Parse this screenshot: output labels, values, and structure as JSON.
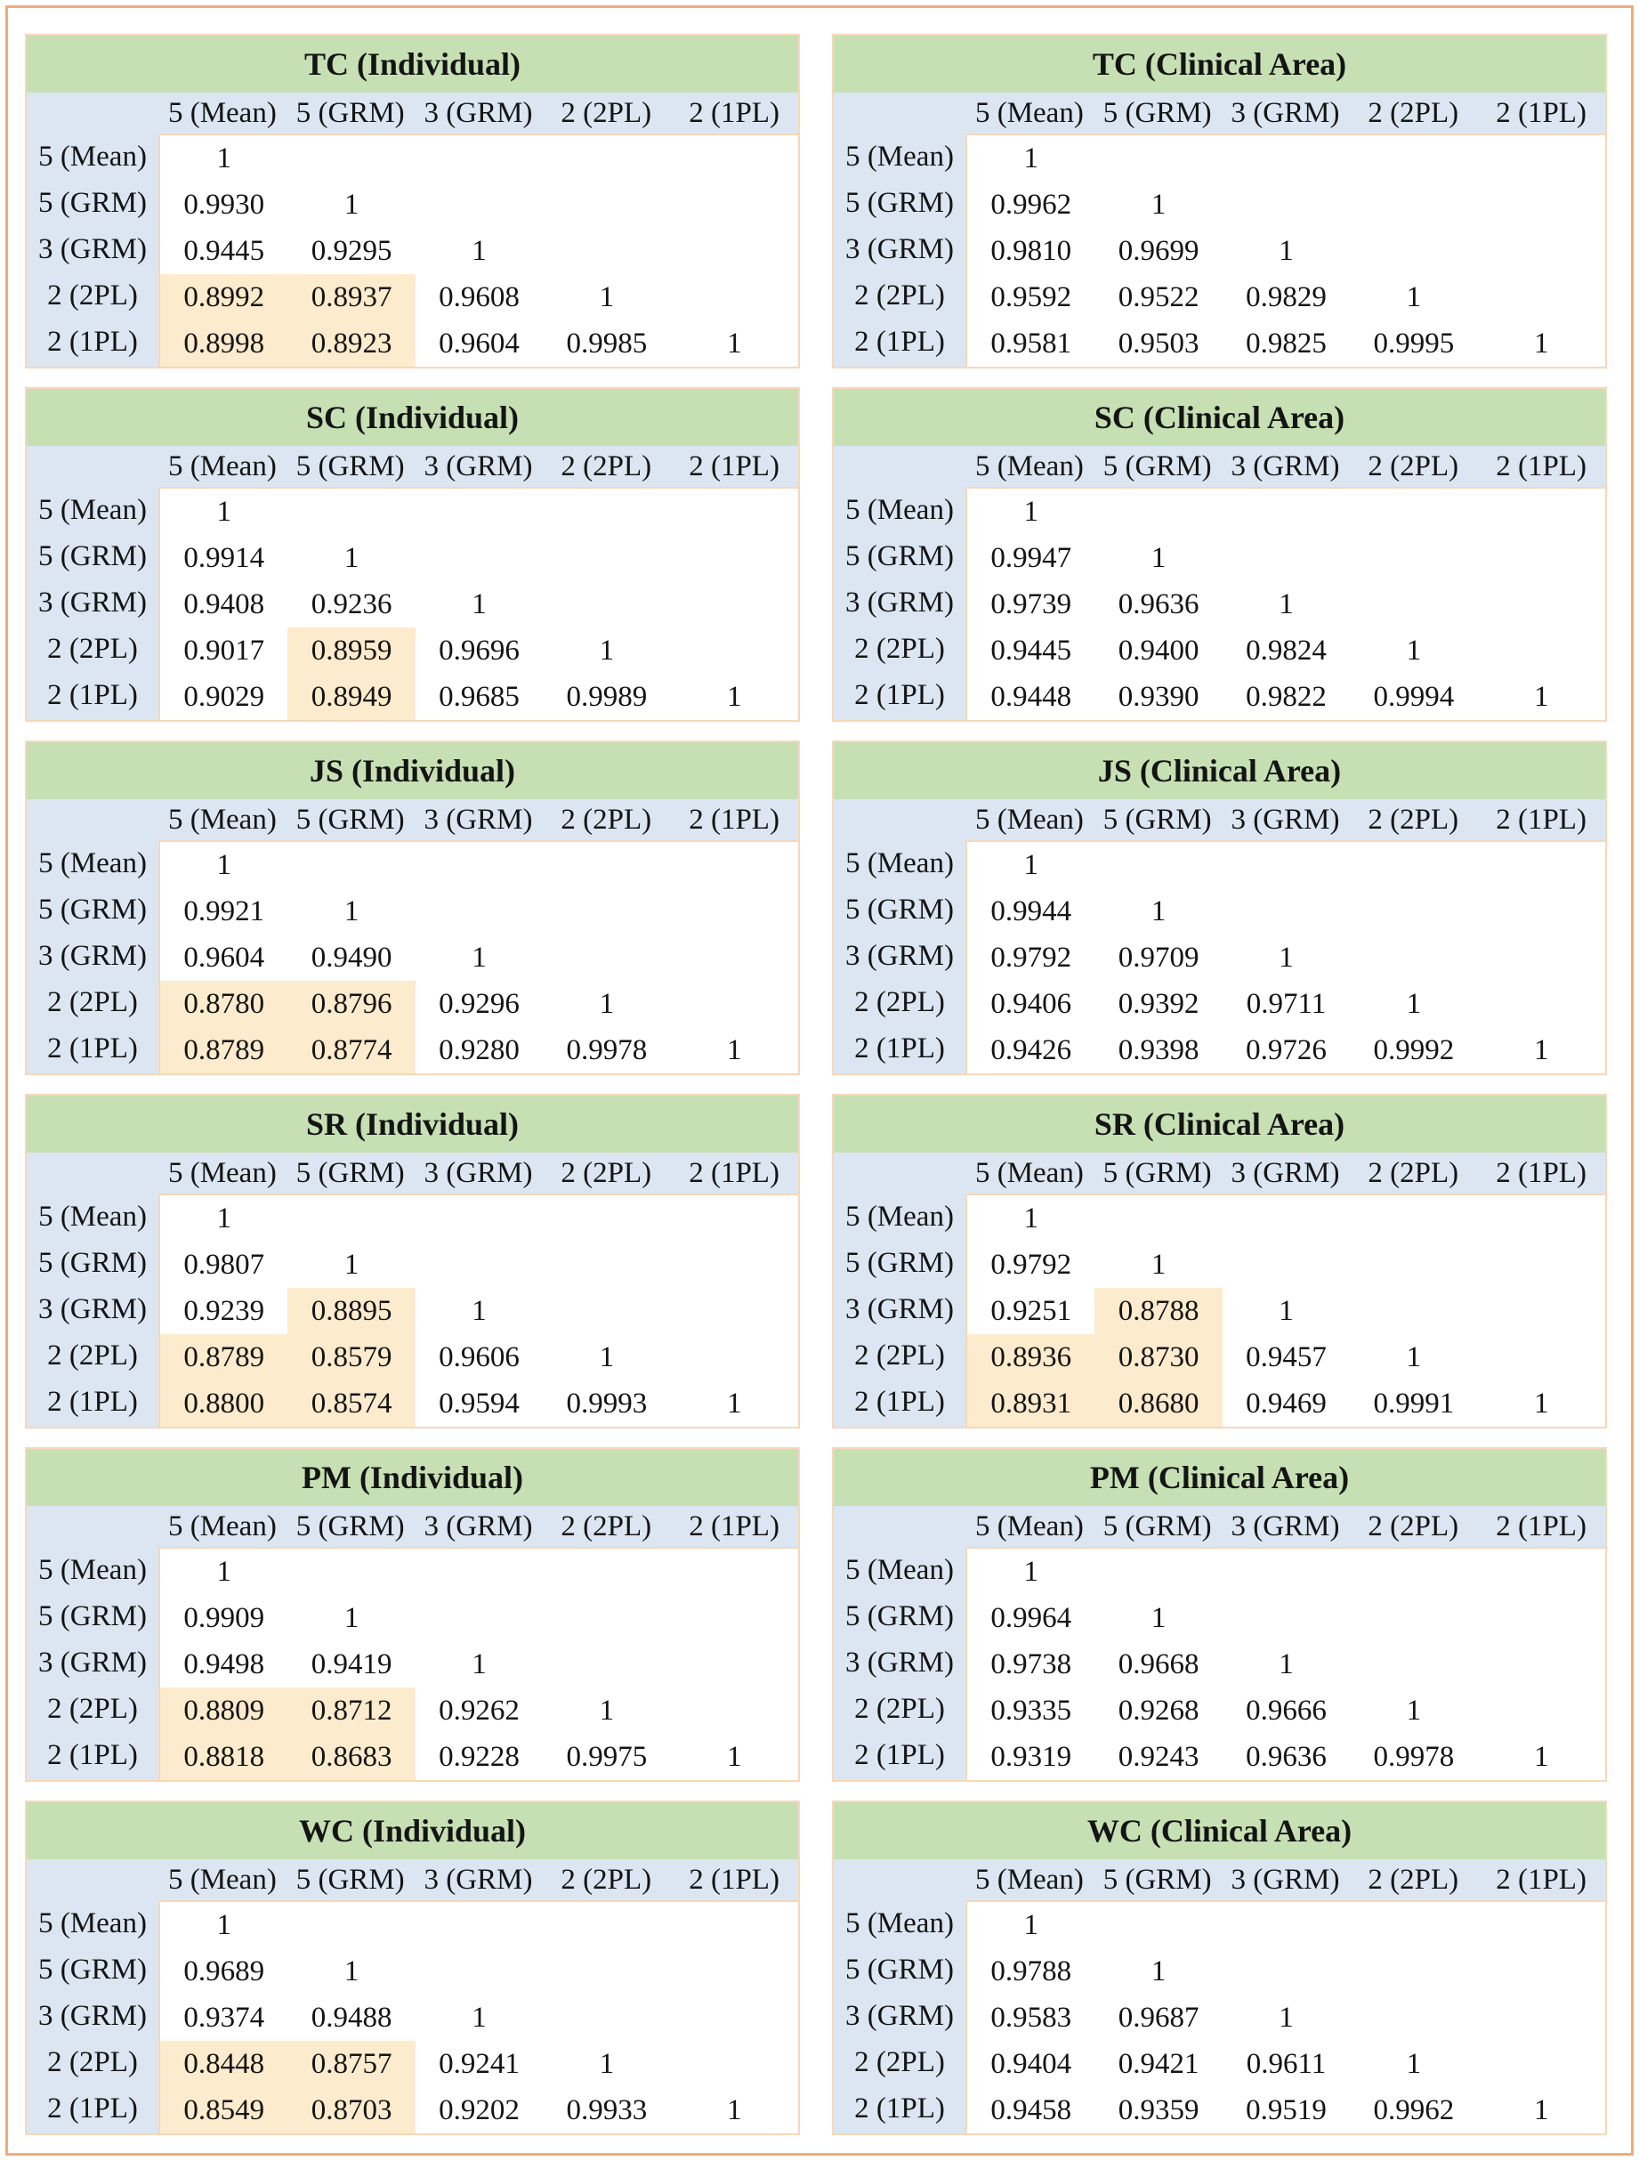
{
  "page": {
    "background": "#ffffff",
    "border_color": "#efab7e",
    "description": "Grid of twelve lower-triangular correlation matrices comparing scoring models (Individual vs Clinical Area) for six scales"
  },
  "colors": {
    "page_border": "#efab7e",
    "table_border": "#f8d7b9",
    "title_bg": "#c6e0b4",
    "header_bg": "#dbe6f2",
    "highlight_bg": "#fcebcd",
    "text": "#141414"
  },
  "highlight": {
    "rule": "value_below",
    "threshold": 0.9
  },
  "columns": [
    "5 (Mean)",
    "5 (GRM)",
    "3 (GRM)",
    "2 (2PL)",
    "2 (1PL)"
  ],
  "rows": [
    "5 (Mean)",
    "5 (GRM)",
    "3 (GRM)",
    "2 (2PL)",
    "2 (1PL)"
  ],
  "tables": [
    {
      "title": "TC (Individual)",
      "values": [
        [
          "1"
        ],
        [
          "0.9930",
          "1"
        ],
        [
          "0.9445",
          "0.9295",
          "1"
        ],
        [
          "0.8992",
          "0.8937",
          "0.9608",
          "1"
        ],
        [
          "0.8998",
          "0.8923",
          "0.9604",
          "0.9985",
          "1"
        ]
      ]
    },
    {
      "title": "TC (Clinical Area)",
      "values": [
        [
          "1"
        ],
        [
          "0.9962",
          "1"
        ],
        [
          "0.9810",
          "0.9699",
          "1"
        ],
        [
          "0.9592",
          "0.9522",
          "0.9829",
          "1"
        ],
        [
          "0.9581",
          "0.9503",
          "0.9825",
          "0.9995",
          "1"
        ]
      ]
    },
    {
      "title": "SC (Individual)",
      "values": [
        [
          "1"
        ],
        [
          "0.9914",
          "1"
        ],
        [
          "0.9408",
          "0.9236",
          "1"
        ],
        [
          "0.9017",
          "0.8959",
          "0.9696",
          "1"
        ],
        [
          "0.9029",
          "0.8949",
          "0.9685",
          "0.9989",
          "1"
        ]
      ]
    },
    {
      "title": "SC (Clinical Area)",
      "values": [
        [
          "1"
        ],
        [
          "0.9947",
          "1"
        ],
        [
          "0.9739",
          "0.9636",
          "1"
        ],
        [
          "0.9445",
          "0.9400",
          "0.9824",
          "1"
        ],
        [
          "0.9448",
          "0.9390",
          "0.9822",
          "0.9994",
          "1"
        ]
      ]
    },
    {
      "title": "JS (Individual)",
      "values": [
        [
          "1"
        ],
        [
          "0.9921",
          "1"
        ],
        [
          "0.9604",
          "0.9490",
          "1"
        ],
        [
          "0.8780",
          "0.8796",
          "0.9296",
          "1"
        ],
        [
          "0.8789",
          "0.8774",
          "0.9280",
          "0.9978",
          "1"
        ]
      ]
    },
    {
      "title": "JS (Clinical Area)",
      "values": [
        [
          "1"
        ],
        [
          "0.9944",
          "1"
        ],
        [
          "0.9792",
          "0.9709",
          "1"
        ],
        [
          "0.9406",
          "0.9392",
          "0.9711",
          "1"
        ],
        [
          "0.9426",
          "0.9398",
          "0.9726",
          "0.9992",
          "1"
        ]
      ]
    },
    {
      "title": "SR (Individual)",
      "values": [
        [
          "1"
        ],
        [
          "0.9807",
          "1"
        ],
        [
          "0.9239",
          "0.8895",
          "1"
        ],
        [
          "0.8789",
          "0.8579",
          "0.9606",
          "1"
        ],
        [
          "0.8800",
          "0.8574",
          "0.9594",
          "0.9993",
          "1"
        ]
      ]
    },
    {
      "title": "SR (Clinical Area)",
      "values": [
        [
          "1"
        ],
        [
          "0.9792",
          "1"
        ],
        [
          "0.9251",
          "0.8788",
          "1"
        ],
        [
          "0.8936",
          "0.8730",
          "0.9457",
          "1"
        ],
        [
          "0.8931",
          "0.8680",
          "0.9469",
          "0.9991",
          "1"
        ]
      ]
    },
    {
      "title": "PM (Individual)",
      "values": [
        [
          "1"
        ],
        [
          "0.9909",
          "1"
        ],
        [
          "0.9498",
          "0.9419",
          "1"
        ],
        [
          "0.8809",
          "0.8712",
          "0.9262",
          "1"
        ],
        [
          "0.8818",
          "0.8683",
          "0.9228",
          "0.9975",
          "1"
        ]
      ]
    },
    {
      "title": "PM (Clinical Area)",
      "values": [
        [
          "1"
        ],
        [
          "0.9964",
          "1"
        ],
        [
          "0.9738",
          "0.9668",
          "1"
        ],
        [
          "0.9335",
          "0.9268",
          "0.9666",
          "1"
        ],
        [
          "0.9319",
          "0.9243",
          "0.9636",
          "0.9978",
          "1"
        ]
      ]
    },
    {
      "title": "WC (Individual)",
      "values": [
        [
          "1"
        ],
        [
          "0.9689",
          "1"
        ],
        [
          "0.9374",
          "0.9488",
          "1"
        ],
        [
          "0.8448",
          "0.8757",
          "0.9241",
          "1"
        ],
        [
          "0.8549",
          "0.8703",
          "0.9202",
          "0.9933",
          "1"
        ]
      ]
    },
    {
      "title": "WC (Clinical Area)",
      "values": [
        [
          "1"
        ],
        [
          "0.9788",
          "1"
        ],
        [
          "0.9583",
          "0.9687",
          "1"
        ],
        [
          "0.9404",
          "0.9421",
          "0.9611",
          "1"
        ],
        [
          "0.9458",
          "0.9359",
          "0.9519",
          "0.9962",
          "1"
        ]
      ]
    }
  ]
}
